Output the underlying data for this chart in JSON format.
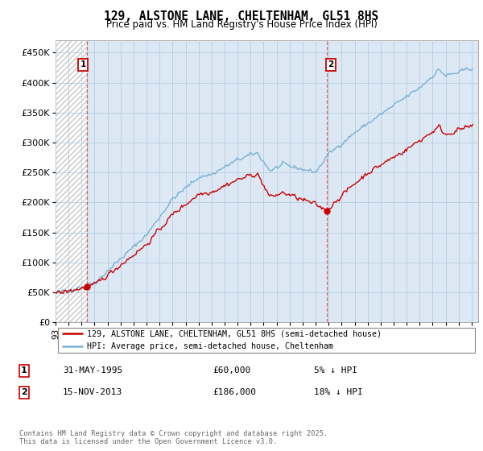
{
  "title": "129, ALSTONE LANE, CHELTENHAM, GL51 8HS",
  "subtitle": "Price paid vs. HM Land Registry's House Price Index (HPI)",
  "ylabel_ticks": [
    "£0",
    "£50K",
    "£100K",
    "£150K",
    "£200K",
    "£250K",
    "£300K",
    "£350K",
    "£400K",
    "£450K"
  ],
  "ytick_values": [
    0,
    50000,
    100000,
    150000,
    200000,
    250000,
    300000,
    350000,
    400000,
    450000
  ],
  "ylim": [
    0,
    470000
  ],
  "xlim_start": 1993.0,
  "xlim_end": 2025.5,
  "marker1_x": 1995.42,
  "marker1_y": 60000,
  "marker2_x": 2013.88,
  "marker2_y": 186000,
  "vline1_x": 1995.42,
  "vline2_x": 2013.88,
  "hatch_end_x": 1995.42,
  "legend_line1": "129, ALSTONE LANE, CHELTENHAM, GL51 8HS (semi-detached house)",
  "legend_line2": "HPI: Average price, semi-detached house, Cheltenham",
  "transaction1_date": "31-MAY-1995",
  "transaction1_price": "£60,000",
  "transaction1_hpi": "5% ↓ HPI",
  "transaction2_date": "15-NOV-2013",
  "transaction2_price": "£186,000",
  "transaction2_hpi": "18% ↓ HPI",
  "copyright_text": "Contains HM Land Registry data © Crown copyright and database right 2025.\nThis data is licensed under the Open Government Licence v3.0.",
  "line_red_color": "#cc0000",
  "line_blue_color": "#7ab0d4",
  "bg_color": "#dce9f5",
  "hatch_color": "#c8c8c8",
  "grid_color": "#b8cce0",
  "vline_color": "#e06060",
  "dot_color": "#cc0000"
}
